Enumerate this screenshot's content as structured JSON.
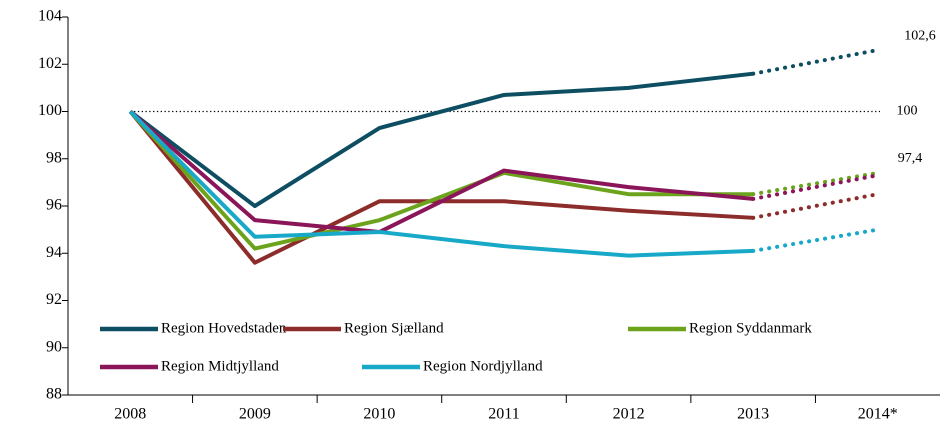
{
  "chart_data": {
    "type": "line",
    "categories": [
      "2008",
      "2009",
      "2010",
      "2011",
      "2012",
      "2013",
      "2014*"
    ],
    "series": [
      {
        "name": "Region Hovedstaden",
        "color": "#0e4e62",
        "values": [
          100,
          96.0,
          99.3,
          100.7,
          101.0,
          101.6,
          102.6
        ]
      },
      {
        "name": "Region Sjælland",
        "color": "#8c2d2b",
        "values": [
          100,
          93.6,
          96.2,
          96.2,
          95.8,
          95.5,
          96.5
        ]
      },
      {
        "name": "Region Syddanmark",
        "color": "#6ca31c",
        "values": [
          100,
          94.2,
          95.4,
          97.4,
          96.5,
          96.5,
          97.4
        ]
      },
      {
        "name": "Region Midtjylland",
        "color": "#8a1559",
        "values": [
          100,
          95.4,
          94.9,
          97.5,
          96.8,
          96.3,
          97.3
        ]
      },
      {
        "name": "Region Nordjylland",
        "color": "#18a9c9",
        "values": [
          100,
          94.7,
          94.9,
          94.3,
          93.9,
          94.1,
          95.0
        ]
      }
    ],
    "reference_line": 100,
    "annotations": [
      {
        "text": "102,6",
        "value": 102.6
      },
      {
        "text": "100",
        "value": 100
      },
      {
        "text": "97,4",
        "value": 97.4
      }
    ],
    "ylim": [
      88,
      104
    ],
    "yticks": [
      88,
      90,
      92,
      94,
      96,
      98,
      100,
      102,
      104
    ],
    "grid": false
  }
}
